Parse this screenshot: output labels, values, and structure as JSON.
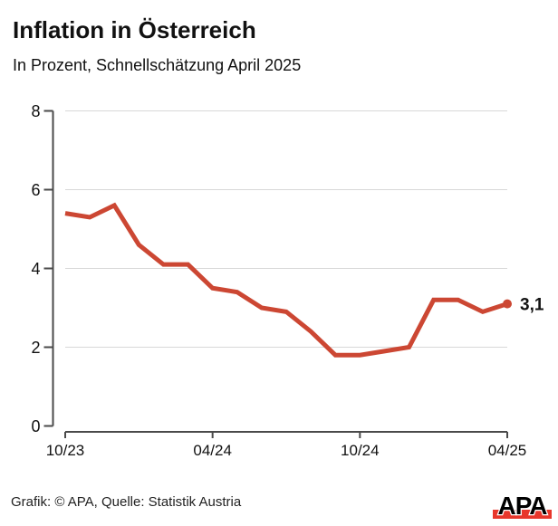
{
  "header": {
    "title": "Inflation in Österreich",
    "subtitle": "In Prozent, Schnellschätzung April 2025"
  },
  "chart_data": {
    "type": "line",
    "title": "Inflation in Österreich",
    "subtitle": "In Prozent, Schnellschätzung April 2025",
    "unit": "Prozent",
    "categories": [
      "10/23",
      "11/23",
      "12/23",
      "01/24",
      "02/24",
      "03/24",
      "04/24",
      "05/24",
      "06/24",
      "07/24",
      "08/24",
      "09/24",
      "10/24",
      "11/24",
      "12/24",
      "01/25",
      "02/25",
      "03/25",
      "04/25"
    ],
    "values": [
      5.4,
      5.3,
      5.6,
      4.6,
      4.1,
      4.1,
      3.5,
      3.4,
      3.0,
      2.9,
      2.4,
      1.8,
      1.8,
      1.9,
      2.0,
      3.2,
      3.2,
      2.9,
      3.1
    ],
    "x_tick_labels": [
      "10/23",
      "04/24",
      "10/24",
      "04/25"
    ],
    "x_tick_indices": [
      0,
      6,
      12,
      18
    ],
    "y_ticks": [
      0,
      2,
      4,
      6,
      8
    ],
    "ylim": [
      0,
      8
    ],
    "grid": "horizontal",
    "legend": "none",
    "line_color": "#cc4733",
    "end_label": "3,1",
    "last_point_marker": true
  },
  "footer": {
    "credit": "Grafik: © APA, Quelle: Statistik Austria",
    "logo_text": "APA",
    "logo_bar_color": "#e8362b"
  }
}
